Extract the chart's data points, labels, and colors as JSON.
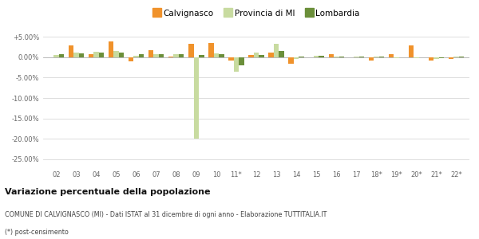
{
  "years": [
    "02",
    "03",
    "04",
    "05",
    "06",
    "07",
    "08",
    "09",
    "10",
    "11*",
    "12",
    "13",
    "14",
    "15",
    "16",
    "17",
    "18*",
    "19*",
    "20*",
    "21*",
    "22*"
  ],
  "calvignasco": [
    0.0,
    2.8,
    0.7,
    3.8,
    -1.0,
    1.8,
    0.2,
    3.2,
    3.5,
    -0.8,
    0.5,
    1.2,
    -1.5,
    0.0,
    0.7,
    0.0,
    -0.8,
    0.7,
    2.8,
    -0.8,
    -0.5
  ],
  "provincia_mi": [
    0.5,
    1.2,
    1.4,
    1.5,
    0.4,
    0.8,
    0.8,
    -20.0,
    0.9,
    -3.5,
    1.1,
    3.2,
    -0.5,
    0.4,
    0.2,
    0.1,
    0.2,
    -0.2,
    -0.3,
    -0.5,
    0.2
  ],
  "lombardia": [
    0.7,
    1.0,
    1.1,
    1.1,
    0.7,
    0.7,
    0.7,
    0.5,
    0.7,
    -2.0,
    0.5,
    1.6,
    0.2,
    0.3,
    0.2,
    0.2,
    0.1,
    0.0,
    -0.1,
    -0.3,
    0.1
  ],
  "color_calvignasco": "#f0922b",
  "color_provincia": "#c8dba0",
  "color_lombardia": "#6b8f3a",
  "bg_color": "#ffffff",
  "grid_color": "#d8d8d8",
  "ylim_min": -27,
  "ylim_max": 7.0,
  "yticks": [
    5,
    0,
    -5,
    -10,
    -15,
    -20,
    -25
  ],
  "title_main": "Variazione percentuale della popolazione",
  "title_sub1": "COMUNE DI CALVIGNASCO (MI) - Dati ISTAT al 31 dicembre di ogni anno - Elaborazione TUTTITALIA.IT",
  "title_sub2": "(*) post-censimento",
  "legend_labels": [
    "Calvignasco",
    "Provincia di MI",
    "Lombardia"
  ]
}
